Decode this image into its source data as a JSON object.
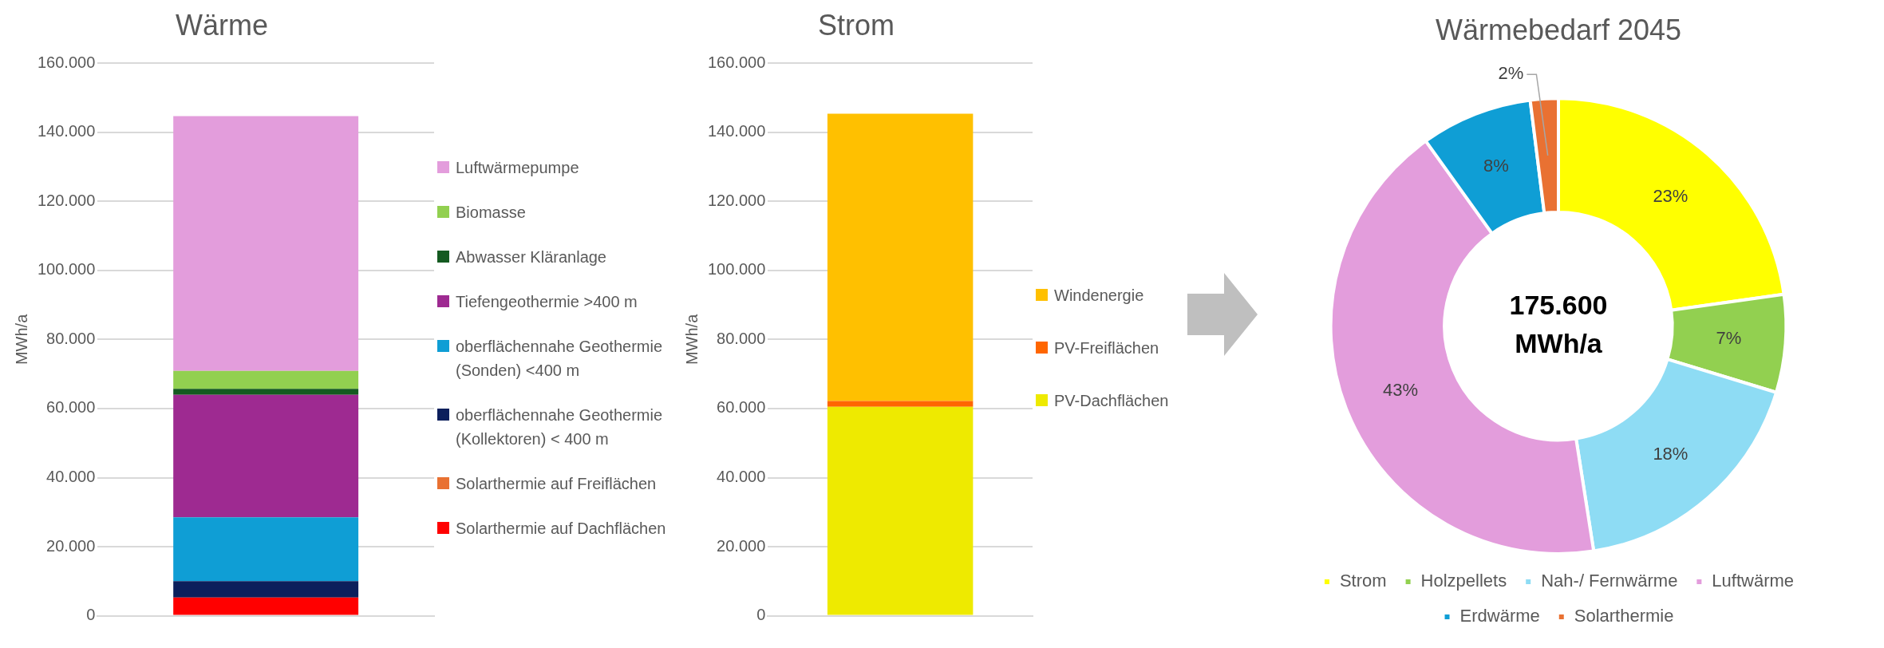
{
  "chart_data": [
    {
      "type": "bar",
      "title": "Wärme",
      "ylabel": "MWh/a",
      "stacked": true,
      "categories": [
        null
      ],
      "ylim": [
        0,
        160000
      ],
      "yticks": [
        0,
        {
          "value": 20000,
          "label": "20.000"
        },
        {
          "value": 40000,
          "label": "40.000"
        },
        {
          "value": 60000,
          "label": "60.000"
        },
        {
          "value": 80000,
          "label": "80.000"
        },
        {
          "value": 100000,
          "label": "100.000"
        },
        {
          "value": 120000,
          "label": "120.000"
        },
        {
          "value": 140000,
          "label": "140.000"
        },
        {
          "value": 160000,
          "label": "160.000"
        }
      ],
      "grid": "y",
      "legend": "right",
      "series": [
        {
          "name": "Solarthermie auf Dachflächen",
          "color": "#ff0000",
          "values": [
            5300
          ]
        },
        {
          "name": "Solarthermie auf Freiflächen",
          "color": "#e97132",
          "values": [
            0
          ]
        },
        {
          "name": "oberflächennahe Geothermie (Kollektoren) < 400 m",
          "color": "#0c1f5c",
          "values": [
            4700
          ]
        },
        {
          "name": "oberflächennahe Geothermie (Sonden) <400 m",
          "color": "#0f9ed5",
          "values": [
            18500
          ]
        },
        {
          "name": "Tiefengeothermie >400 m",
          "color": "#9e2a91",
          "values": [
            35500
          ]
        },
        {
          "name": "Abwasser Kläranlage",
          "color": "#145a20",
          "values": [
            1700
          ]
        },
        {
          "name": "Biomasse",
          "color": "#92d050",
          "values": [
            5200
          ]
        },
        {
          "name": "Luftwärmepumpe",
          "color": "#e39ddc",
          "values": [
            73800
          ]
        }
      ]
    },
    {
      "type": "bar",
      "title": "Strom",
      "ylabel": "MWh/a",
      "stacked": true,
      "categories": [
        null
      ],
      "ylim": [
        0,
        160000
      ],
      "yticks": [
        0,
        {
          "value": 20000,
          "label": "20.000"
        },
        {
          "value": 40000,
          "label": "40.000"
        },
        {
          "value": 60000,
          "label": "60.000"
        },
        {
          "value": 80000,
          "label": "80.000"
        },
        {
          "value": 100000,
          "label": "100.000"
        },
        {
          "value": 120000,
          "label": "120.000"
        },
        {
          "value": 140000,
          "label": "140.000"
        },
        {
          "value": 160000,
          "label": "160.000"
        }
      ],
      "grid": "y",
      "legend": "right",
      "series": [
        {
          "name": "PV-Dachflächen",
          "color": "#eeea00",
          "values": [
            60500
          ]
        },
        {
          "name": "PV-Freiflächen",
          "color": "#ff6600",
          "values": [
            1700
          ]
        },
        {
          "name": "Windenergie",
          "color": "#ffc000",
          "values": [
            83200
          ]
        }
      ]
    },
    {
      "type": "donut",
      "title": "Wärmebedarf 2045",
      "categories": [
        "Strom",
        "Holzpellets",
        "Nah-/ Fernwärme",
        "Luftwärme",
        "Erdwärme",
        "Solarthermie"
      ],
      "values": [
        23,
        7,
        18,
        43,
        8,
        2
      ],
      "colors": [
        "#ffff00",
        "#92d050",
        "#8edcf4",
        "#e39ddc",
        "#0f9ed5",
        "#e97132"
      ],
      "value_labels": [
        "23%",
        "7%",
        "18%",
        "43%",
        "8%",
        "2%"
      ],
      "legend": "bottom",
      "annotations": [
        "175.600 MWh/a"
      ]
    }
  ]
}
